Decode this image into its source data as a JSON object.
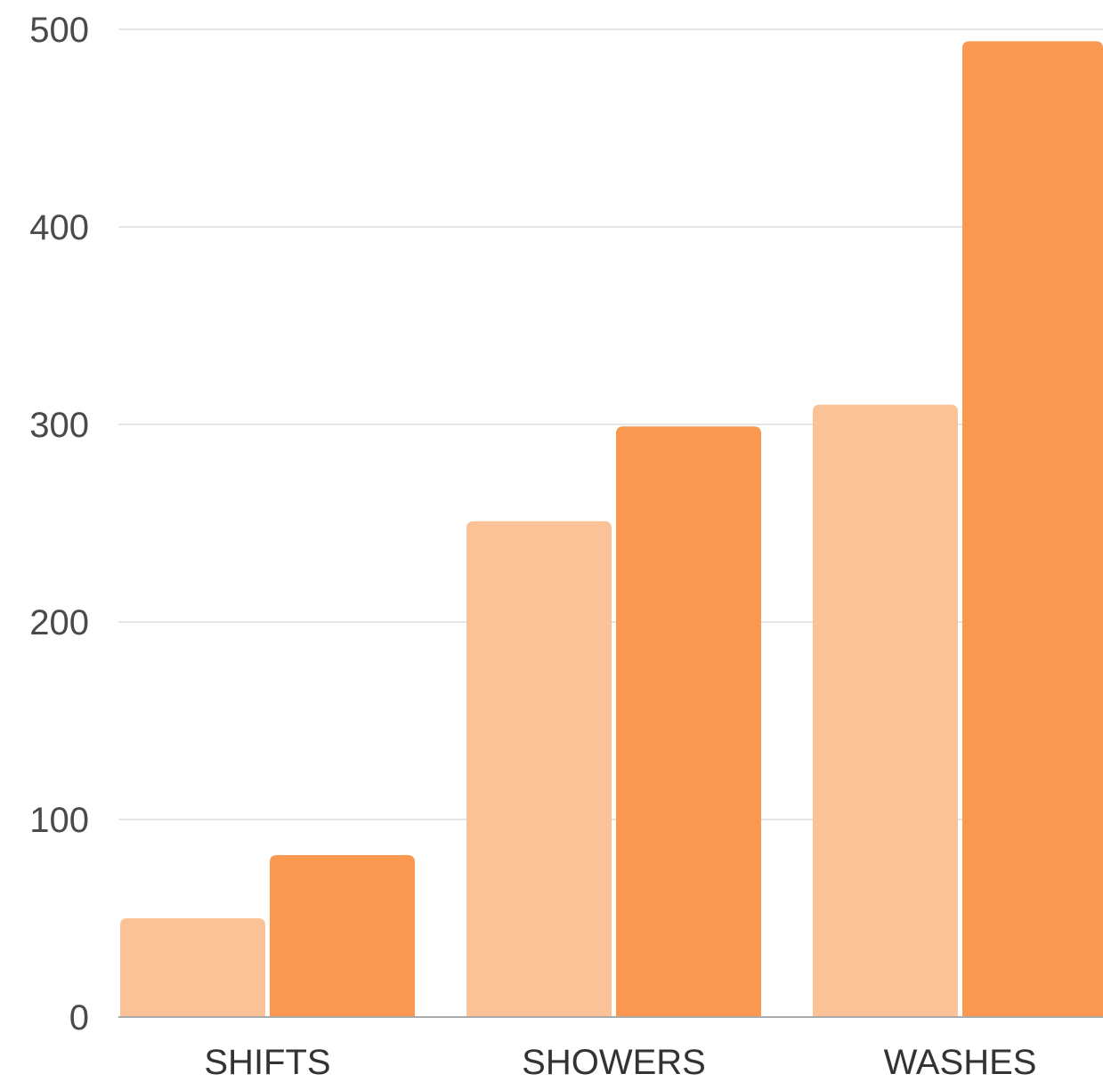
{
  "chart_data": {
    "type": "bar",
    "categories": [
      "SHIFTS",
      "SHOWERS",
      "WASHES"
    ],
    "series": [
      {
        "values": [
          50,
          251,
          310
        ]
      },
      {
        "values": [
          82,
          299,
          494
        ]
      }
    ],
    "colors": [
      "#FBC197",
      "#F9984E"
    ],
    "y_ticks": [
      "0",
      "100",
      "200",
      "300",
      "400",
      "500"
    ],
    "ylim": [
      0,
      500
    ],
    "grid": true,
    "grid_color": "#dddddd",
    "axis_color": "#aaaaaa",
    "legend": "none"
  }
}
